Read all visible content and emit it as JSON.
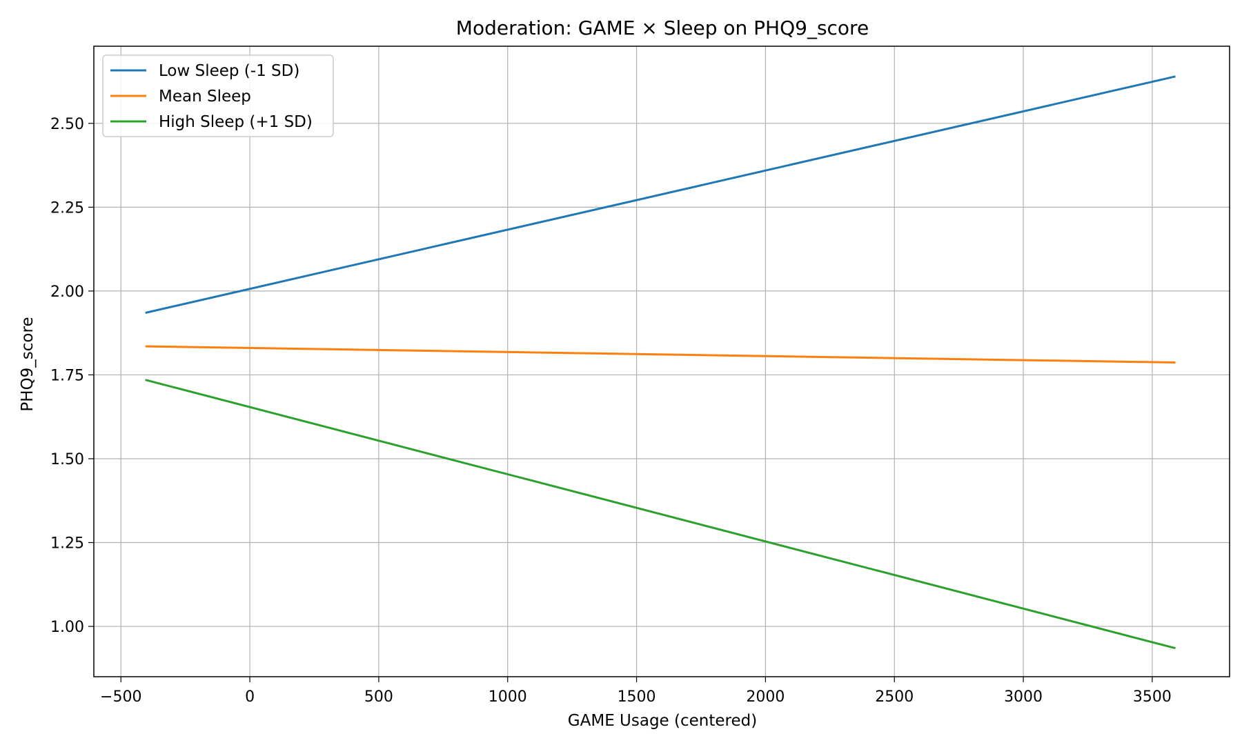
{
  "chart_data": {
    "type": "line",
    "title": "Moderation: GAME × Sleep on PHQ9_score",
    "xlabel": "GAME Usage (centered)",
    "ylabel": "PHQ9_score",
    "xlim": [
      -605,
      3800
    ],
    "ylim": [
      0.85,
      2.73
    ],
    "x_ticks": [
      -500,
      0,
      500,
      1000,
      1500,
      2000,
      2500,
      3000,
      3500
    ],
    "x_tick_labels": [
      "−500",
      "0",
      "500",
      "1000",
      "1500",
      "2000",
      "2500",
      "3000",
      "3500"
    ],
    "y_ticks": [
      1.0,
      1.25,
      1.5,
      1.75,
      2.0,
      2.25,
      2.5
    ],
    "y_tick_labels": [
      "1.00",
      "1.25",
      "1.50",
      "1.75",
      "2.00",
      "2.25",
      "2.50"
    ],
    "grid": true,
    "legend_position": "top-left",
    "series": [
      {
        "name": "Low Sleep (-1 SD)",
        "color": "#1f77b4",
        "x": [
          -405,
          3590
        ],
        "y": [
          1.935,
          2.64
        ]
      },
      {
        "name": "Mean Sleep",
        "color": "#ff7f0e",
        "x": [
          -405,
          3590
        ],
        "y": [
          1.835,
          1.787
        ]
      },
      {
        "name": "High Sleep (+1 SD)",
        "color": "#2ca02c",
        "x": [
          -405,
          3590
        ],
        "y": [
          1.735,
          0.935
        ]
      }
    ]
  }
}
